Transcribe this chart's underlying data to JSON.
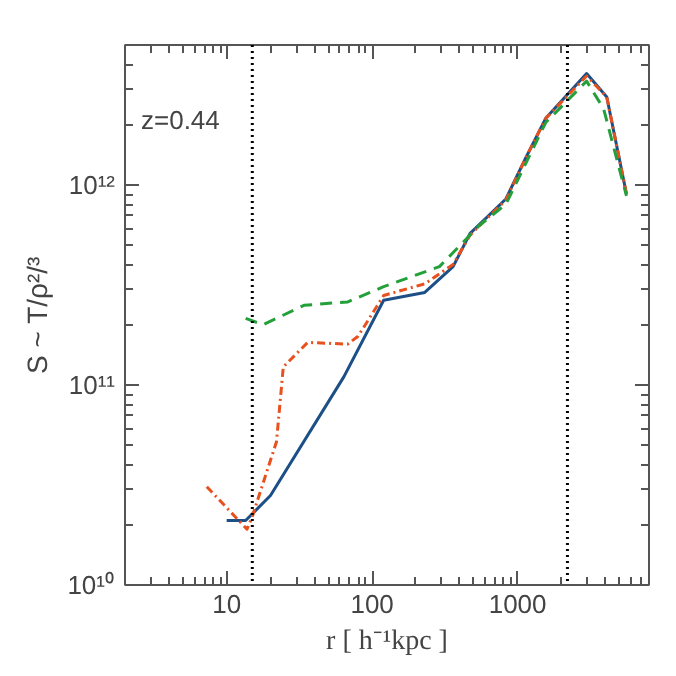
{
  "chart_data": {
    "type": "line",
    "xlabel": "r [ h⁻¹kpc ]",
    "ylabel": "S ~ T/ρ²/³",
    "annotations": [
      "z=0.44"
    ],
    "log": "xy",
    "xlim": [
      2,
      8000
    ],
    "ylim": [
      10000000000.0,
      5000000000000.0
    ],
    "xticks": [
      10,
      100,
      1000
    ],
    "yticks": [
      {
        "value": 10000000000.0,
        "label": "10¹⁰"
      },
      {
        "value": 100000000000.0,
        "label": "10¹¹"
      },
      {
        "value": 1000000000000.0,
        "label": "10¹²"
      }
    ],
    "grid": false,
    "ref_lines": [
      {
        "axis": "x",
        "value": 15,
        "label": null,
        "color": "#000000",
        "line_style": "dotted"
      },
      {
        "axis": "x",
        "value": 2200,
        "label": null,
        "color": "#000000",
        "line_style": "dotted"
      }
    ],
    "series": [
      {
        "color": "#1b4f86",
        "line_style": "solid",
        "x": [
          10,
          13.5,
          20,
          64,
          120,
          230,
          360,
          470,
          830,
          1130,
          1560,
          2980,
          4100,
          5600
        ],
        "values": [
          21000000000.0,
          21000000000.0,
          28000000000.0,
          110000000000.0,
          265000000000.0,
          290000000000.0,
          390000000000.0,
          570000000000.0,
          850000000000.0,
          1350000000000.0,
          2150000000000.0,
          3600000000000.0,
          2750000000000.0,
          900000000000.0
        ]
      },
      {
        "color": "#e8501e",
        "line_style": "dashdot",
        "x": [
          7.3,
          13.8,
          15,
          22,
          24.5,
          36,
          68,
          80,
          120,
          230,
          360,
          470,
          830,
          1130,
          1560,
          2980,
          4100,
          5600
        ],
        "values": [
          31000000000.0,
          19000000000.0,
          22000000000.0,
          52000000000.0,
          123000000000.0,
          163000000000.0,
          160000000000.0,
          175000000000.0,
          280000000000.0,
          320000000000.0,
          400000000000.0,
          560000000000.0,
          840000000000.0,
          1350000000000.0,
          2150000000000.0,
          3500000000000.0,
          2750000000000.0,
          900000000000.0
        ]
      },
      {
        "color": "#24a03a",
        "line_style": "dashed",
        "x": [
          13.5,
          17.8,
          34,
          68,
          120,
          290,
          550,
          830,
          1560,
          2980,
          3900,
          5600
        ],
        "values": [
          215000000000.0,
          200000000000.0,
          250000000000.0,
          260000000000.0,
          310000000000.0,
          390000000000.0,
          630000000000.0,
          800000000000.0,
          2050000000000.0,
          3300000000000.0,
          2400000000000.0,
          880000000000.0
        ]
      }
    ]
  }
}
